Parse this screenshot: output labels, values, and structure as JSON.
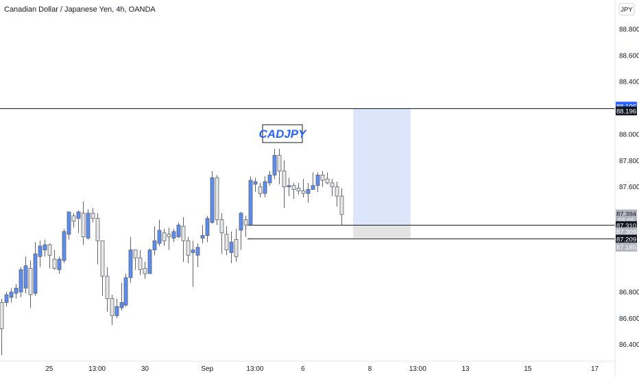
{
  "chart_data": {
    "type": "candlestick",
    "title": "Canadian Dollar / Japanese Yen, 4h, OANDA",
    "currency_label": "JPY",
    "ylim": [
      86.31,
      88.98
    ],
    "y_ticks": [
      "88.800",
      "88.600",
      "88.400",
      "88.000",
      "87.800",
      "87.600",
      "86.800",
      "86.600",
      "86.400"
    ],
    "x_ticks": [
      {
        "label": "25",
        "i": 10
      },
      {
        "label": "13:00",
        "i": 20
      },
      {
        "label": "30",
        "i": 30
      },
      {
        "label": "Sep",
        "i": 43
      },
      {
        "label": "13:00",
        "i": 53
      },
      {
        "label": "6",
        "i": 63
      },
      {
        "label": "8",
        "i": 77
      },
      {
        "label": "13:00",
        "i": 87
      },
      {
        "label": "13",
        "i": 97
      },
      {
        "label": "15",
        "i": 110
      },
      {
        "label": "17",
        "i": 124
      }
    ],
    "bull_color": "#5b8def",
    "bear_color": "#e6e6e6",
    "annotation": "CADJPY",
    "levels": [
      {
        "value": 88.196,
        "label": "88.196",
        "color": "#131722"
      },
      {
        "value": 87.31,
        "label": "87.310",
        "color": "#131722"
      },
      {
        "value": 87.209,
        "label": "87.209",
        "color": "#131722"
      }
    ],
    "price_tags": [
      {
        "label": "88.196",
        "bg": "#2962ff",
        "fg": "#ffffff",
        "value": 88.214
      },
      {
        "label": "88.196",
        "bg": "#131722",
        "fg": "#ffffff",
        "value": 88.178
      },
      {
        "label": "87.394",
        "bg": "#b2b5be",
        "fg": "#131722",
        "value": 87.394
      },
      {
        "label": "55:05",
        "bg": "#b2b5be",
        "fg": "#ffffff",
        "value": 87.345
      },
      {
        "label": "87.310",
        "bg": "#131722",
        "fg": "#ffffff",
        "value": 87.305
      },
      {
        "label": "87.309",
        "bg": "#b2b5be",
        "fg": "#ffffff",
        "value": 87.258
      },
      {
        "label": "87.209",
        "bg": "#131722",
        "fg": "#ffffff",
        "value": 87.202
      },
      {
        "label": "87.185",
        "bg": "#b2b5be",
        "fg": "#ffffff",
        "value": 87.142
      }
    ],
    "zones": [
      {
        "from_i": 73.5,
        "to_i": 85.5,
        "top": 88.196,
        "bottom": 87.31,
        "color": "#dce6fb"
      },
      {
        "from_i": 73.5,
        "to_i": 85.5,
        "top": 87.31,
        "bottom": 87.209,
        "color": "#e3e3e3"
      }
    ],
    "candles": [
      [
        86.72,
        86.52,
        86.75,
        86.32
      ],
      [
        86.72,
        86.78,
        86.8,
        86.69
      ],
      [
        86.76,
        86.8,
        86.83,
        86.72
      ],
      [
        86.79,
        86.83,
        86.86,
        86.75
      ],
      [
        86.8,
        86.97,
        86.99,
        86.76
      ],
      [
        86.83,
        87.0,
        87.07,
        86.79
      ],
      [
        86.98,
        86.78,
        87.04,
        86.68
      ],
      [
        86.79,
        87.09,
        87.18,
        86.77
      ],
      [
        87.07,
        87.15,
        87.19,
        86.99
      ],
      [
        87.12,
        87.16,
        87.2,
        87.07
      ],
      [
        87.16,
        87.08,
        87.17,
        86.98
      ],
      [
        87.05,
        86.98,
        87.12,
        86.97
      ],
      [
        86.97,
        87.05,
        87.07,
        86.94
      ],
      [
        87.04,
        87.26,
        87.28,
        87.02
      ],
      [
        87.24,
        87.41,
        87.41,
        87.2
      ],
      [
        87.38,
        87.34,
        87.4,
        87.29
      ],
      [
        87.36,
        87.41,
        87.42,
        87.25
      ],
      [
        87.4,
        87.22,
        87.49,
        87.16
      ],
      [
        87.21,
        87.4,
        87.43,
        87.2
      ],
      [
        87.4,
        87.36,
        87.44,
        87.33
      ],
      [
        87.36,
        87.19,
        87.4,
        87.01
      ],
      [
        87.19,
        86.92,
        87.19,
        86.77
      ],
      [
        86.92,
        86.75,
        86.99,
        86.65
      ],
      [
        86.75,
        86.62,
        86.78,
        86.55
      ],
      [
        86.62,
        86.69,
        86.75,
        86.6
      ],
      [
        86.68,
        86.72,
        86.87,
        86.66
      ],
      [
        86.7,
        86.91,
        86.94,
        86.69
      ],
      [
        86.91,
        87.12,
        87.22,
        86.87
      ],
      [
        87.12,
        87.06,
        87.12,
        86.97
      ],
      [
        87.06,
        86.97,
        87.12,
        86.93
      ],
      [
        86.98,
        86.94,
        87.03,
        86.9
      ],
      [
        86.94,
        87.12,
        87.13,
        86.94
      ],
      [
        87.12,
        87.19,
        87.3,
        87.08
      ],
      [
        87.17,
        87.27,
        87.35,
        87.15
      ],
      [
        87.25,
        87.19,
        87.28,
        87.15
      ],
      [
        87.24,
        87.22,
        87.29,
        87.12
      ],
      [
        87.21,
        87.26,
        87.28,
        87.18
      ],
      [
        87.22,
        87.31,
        87.33,
        87.21
      ],
      [
        87.3,
        87.19,
        87.37,
        87.03
      ],
      [
        87.19,
        87.08,
        87.22,
        87.02
      ],
      [
        87.1,
        87.12,
        87.19,
        86.84
      ],
      [
        87.08,
        87.14,
        87.17,
        86.99
      ],
      [
        87.21,
        87.23,
        87.31,
        87.17
      ],
      [
        87.23,
        87.36,
        87.38,
        87.18
      ],
      [
        87.33,
        87.67,
        87.72,
        87.32
      ],
      [
        87.67,
        87.35,
        87.69,
        87.31
      ],
      [
        87.35,
        87.25,
        87.4,
        87.09
      ],
      [
        87.24,
        87.12,
        87.3,
        87.08
      ],
      [
        87.1,
        87.18,
        87.26,
        87.02
      ],
      [
        87.2,
        87.07,
        87.28,
        87.03
      ],
      [
        87.27,
        87.4,
        87.41,
        87.12
      ],
      [
        87.35,
        87.31,
        87.38,
        87.22
      ],
      [
        87.31,
        87.65,
        87.68,
        87.3
      ],
      [
        87.62,
        87.64,
        87.67,
        87.56
      ],
      [
        87.6,
        87.55,
        87.63,
        87.52
      ],
      [
        87.55,
        87.64,
        87.68,
        87.52
      ],
      [
        87.63,
        87.69,
        87.72,
        87.61
      ],
      [
        87.69,
        87.84,
        87.89,
        87.66
      ],
      [
        87.84,
        87.72,
        87.89,
        87.62
      ],
      [
        87.72,
        87.6,
        87.8,
        87.44
      ],
      [
        87.6,
        87.61,
        87.67,
        87.53
      ],
      [
        87.61,
        87.58,
        87.63,
        87.51
      ],
      [
        87.59,
        87.57,
        87.63,
        87.54
      ],
      [
        87.57,
        87.55,
        87.66,
        87.52
      ],
      [
        87.55,
        87.58,
        87.63,
        87.48
      ],
      [
        87.58,
        87.61,
        87.71,
        87.58
      ],
      [
        87.61,
        87.69,
        87.71,
        87.56
      ],
      [
        87.69,
        87.65,
        87.72,
        87.6
      ],
      [
        87.66,
        87.63,
        87.71,
        87.62
      ],
      [
        87.63,
        87.6,
        87.66,
        87.53
      ],
      [
        87.6,
        87.53,
        87.64,
        87.45
      ],
      [
        87.53,
        87.39,
        87.59,
        87.31
      ]
    ]
  }
}
